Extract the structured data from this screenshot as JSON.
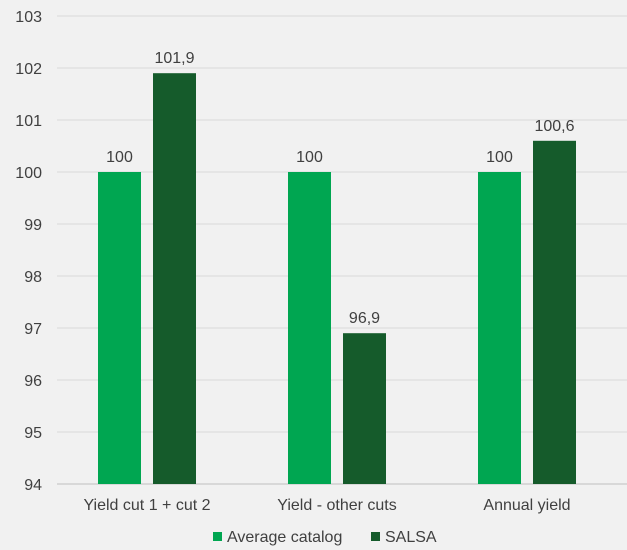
{
  "chart_data": {
    "type": "bar",
    "title": "",
    "xlabel": "",
    "ylabel": "",
    "categories": [
      "Yield cut 1 + cut 2",
      "Yield - other cuts",
      "Annual yield"
    ],
    "series": [
      {
        "name": "Average catalog",
        "values": [
          100,
          100,
          100
        ],
        "labels": [
          "100",
          "100",
          "100"
        ],
        "color": "#00a651"
      },
      {
        "name": "SALSA",
        "values": [
          101.9,
          96.9,
          100.6
        ],
        "labels": [
          "101,9",
          "96,9",
          "100,6"
        ],
        "color": "#155b2b"
      }
    ],
    "ylim": [
      94,
      103
    ],
    "yticks": [
      "94",
      "95",
      "96",
      "97",
      "98",
      "99",
      "100",
      "101",
      "102",
      "103"
    ],
    "grid": true,
    "legend": "bottom-center"
  },
  "colors": {
    "background": "#f1f1f1",
    "gridline": "#d9d9d9",
    "text": "#404040"
  }
}
